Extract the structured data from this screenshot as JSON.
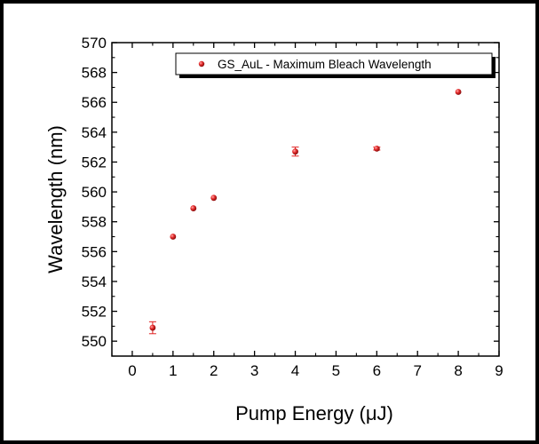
{
  "chart_data": {
    "type": "scatter",
    "title": "",
    "xlabel": "Pump Energy (μJ)",
    "ylabel": "Wavelength (nm)",
    "xlim": [
      -0.5,
      9
    ],
    "ylim": [
      549,
      570
    ],
    "xticks": [
      0,
      1,
      2,
      3,
      4,
      5,
      6,
      7,
      8,
      9
    ],
    "yticks": [
      550,
      552,
      554,
      556,
      558,
      560,
      562,
      564,
      566,
      568,
      570
    ],
    "grid": false,
    "legend_position": "top-right",
    "series": [
      {
        "name": "GS_AuL - Maximum Bleach Wavelength",
        "color": "#e02020",
        "marker": "sphere",
        "x": [
          0.5,
          1.0,
          1.5,
          2.0,
          4.0,
          6.0,
          8.0
        ],
        "y": [
          550.9,
          557.0,
          558.9,
          559.6,
          562.7,
          562.9,
          566.7
        ],
        "yerr": [
          0.4,
          0.05,
          0.05,
          0.05,
          0.3,
          0.1,
          0.05
        ]
      }
    ]
  }
}
